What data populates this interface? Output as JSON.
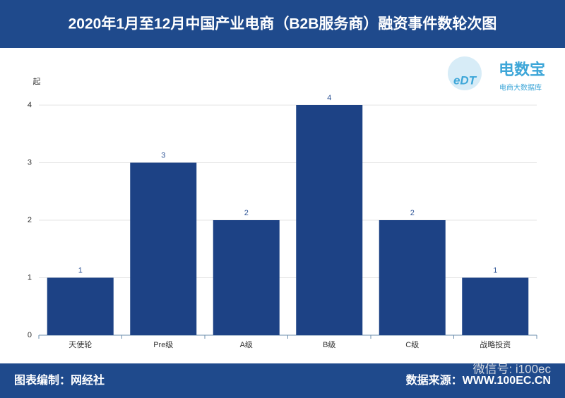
{
  "chart_data": {
    "type": "bar",
    "title": "2020年1月至12月中国产业电商（B2B服务商）融资事件数轮次图",
    "y_unit": "起",
    "categories": [
      "天使轮",
      "Pre级",
      "A级",
      "B级",
      "C级",
      "战略投资"
    ],
    "values": [
      1,
      3,
      2,
      4,
      2,
      1
    ],
    "color": "#1d4285",
    "ylim": [
      0,
      4
    ],
    "yticks": [
      0,
      1,
      2,
      3,
      4
    ],
    "grid": true
  },
  "logo": {
    "mark": "eDT",
    "name": "电数宝",
    "tagline": "电商大数据库"
  },
  "footer": {
    "left": "图表编制：网经社",
    "right": "数据来源：WWW.100EC.CN",
    "watermark": "微信号: i100ec"
  }
}
